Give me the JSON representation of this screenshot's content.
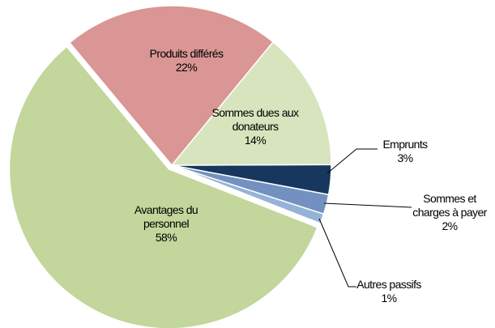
{
  "chart_data": {
    "type": "pie",
    "categories": [
      "Produits différés",
      "Sommes dues aux donateurs",
      "Emprunts",
      "Sommes et charges à payer",
      "Autres passifs",
      "Avantages du personnel"
    ],
    "values": [
      22,
      14,
      3,
      2,
      1,
      58
    ],
    "value_labels": [
      "22%",
      "14%",
      "3%",
      "2%",
      "1%",
      "58%"
    ],
    "colors": [
      "#d99694",
      "#d7e4bd",
      "#17375e",
      "#7391c0",
      "#95b3d7",
      "#c3d69b"
    ]
  }
}
